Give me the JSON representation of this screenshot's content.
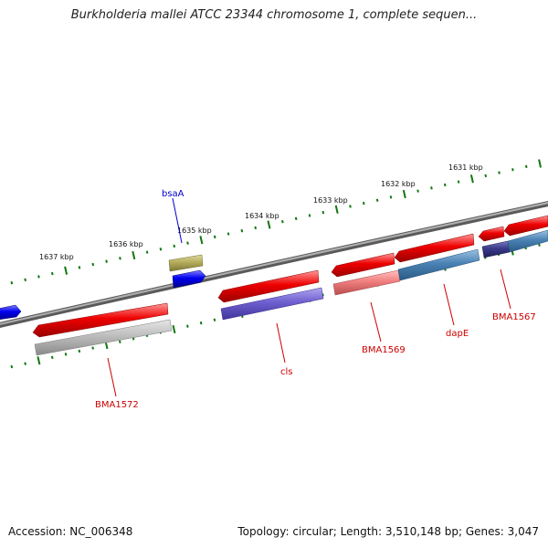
{
  "title": "Burkholderia mallei ATCC 23344 chromosome 1, complete sequen...",
  "accession": "Accession: NC_006348",
  "topology": "Topology: circular; Length: 3,510,148 bp; Genes: 3,047",
  "colors": {
    "backbone": "#808080",
    "forward_gene": "#ee0000",
    "blue_gene": "#0000ee",
    "olive_gene": "#b5ad5a",
    "gray_gene": "#b8b8b8",
    "purple_gene": "#6f5fd0",
    "pink_gene": "#f07f7f",
    "steel_gene": "#4a82b4",
    "navy_gene": "#3a3a8a",
    "tick": "#117711",
    "red_label": "#cc0000",
    "blue_label": "#0000cc"
  },
  "ticks": [
    {
      "label": "1631 kbp"
    },
    {
      "label": "1632 kbp"
    },
    {
      "label": "1633 kbp"
    },
    {
      "label": "1634 kbp"
    },
    {
      "label": "1635 kbp"
    },
    {
      "label": "1636 kbp"
    },
    {
      "label": "1637 kbp"
    }
  ],
  "gene_labels": [
    {
      "name": "bsaA"
    },
    {
      "name": "BMA1572"
    },
    {
      "name": "cls"
    },
    {
      "name": "BMA1569"
    },
    {
      "name": "dapE"
    },
    {
      "name": "BMA1567"
    }
  ]
}
